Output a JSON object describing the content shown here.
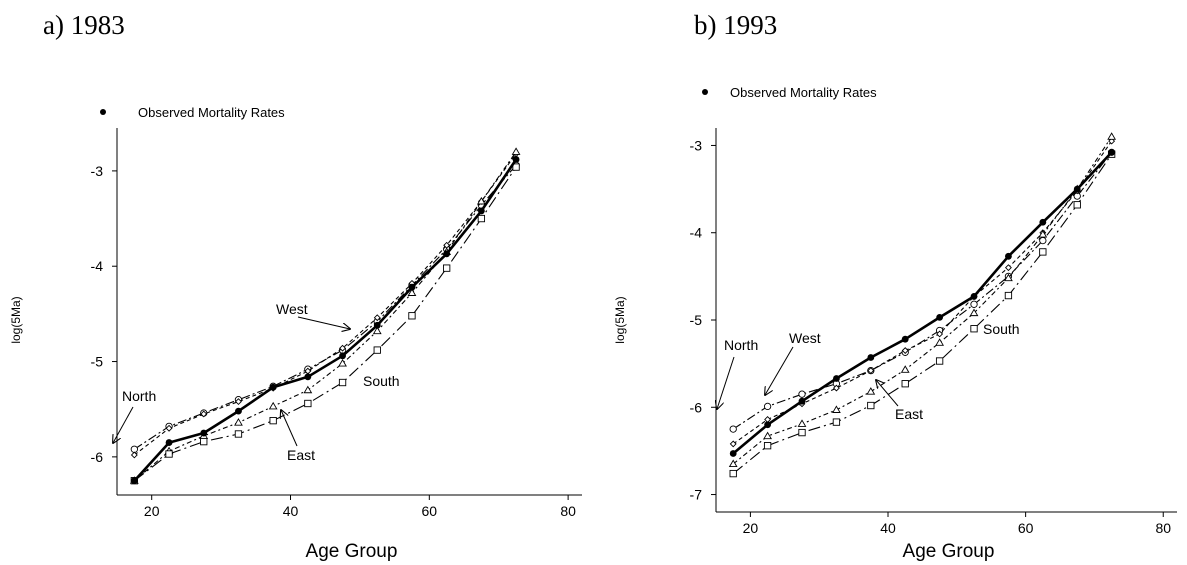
{
  "panels": [
    {
      "title": "a) 1983"
    },
    {
      "title": "b) 1993"
    }
  ],
  "chart_data": [
    {
      "type": "line",
      "title": "a) 1983",
      "xlabel": "Age Group",
      "ylabel": "log(5Ma)",
      "xlim": [
        15,
        82
      ],
      "ylim": [
        -6.4,
        -2.55
      ],
      "xticks": [
        20,
        40,
        60,
        80
      ],
      "yticks": [
        -6,
        -5,
        -4,
        -3
      ],
      "legend": {
        "label": "Observed Mortality Rates",
        "placement": "top-left"
      },
      "x": [
        17.5,
        22.5,
        27.5,
        32.5,
        37.5,
        42.5,
        47.5,
        52.5,
        57.5,
        62.5,
        67.5,
        72.5
      ],
      "series": [
        {
          "name": "Observed Mortality Rates",
          "marker": "dot",
          "values": [
            -6.25,
            -5.85,
            -5.75,
            -5.52,
            -5.27,
            -5.16,
            -4.94,
            -4.62,
            -4.22,
            -3.87,
            -3.42,
            -2.88
          ]
        },
        {
          "name": "North",
          "marker": "circle",
          "values": [
            -5.92,
            -5.68,
            -5.54,
            -5.4,
            -5.26,
            -5.08,
            -4.88,
            -4.58,
            -4.2,
            -3.82,
            -3.36,
            -2.94
          ]
        },
        {
          "name": "West",
          "marker": "diamond",
          "values": [
            -5.98,
            -5.7,
            -5.55,
            -5.42,
            -5.28,
            -5.1,
            -4.86,
            -4.54,
            -4.18,
            -3.78,
            -3.32,
            -2.82
          ]
        },
        {
          "name": "East",
          "marker": "triangle",
          "values": [
            -6.25,
            -5.94,
            -5.78,
            -5.64,
            -5.47,
            -5.3,
            -5.02,
            -4.68,
            -4.28,
            -3.85,
            -3.32,
            -2.8
          ]
        },
        {
          "name": "South",
          "marker": "square",
          "values": [
            -6.25,
            -5.97,
            -5.84,
            -5.76,
            -5.62,
            -5.44,
            -5.22,
            -4.88,
            -4.52,
            -4.02,
            -3.5,
            -2.96
          ]
        }
      ],
      "annotations": [
        "North",
        "West",
        "East",
        "South"
      ]
    },
    {
      "type": "line",
      "title": "b) 1993",
      "xlabel": "Age Group",
      "ylabel": "log(5Ma)",
      "xlim": [
        15,
        82
      ],
      "ylim": [
        -7.2,
        -2.8
      ],
      "xticks": [
        20,
        40,
        60,
        80
      ],
      "yticks": [
        -7,
        -6,
        -5,
        -4,
        -3
      ],
      "legend": {
        "label": "Observed Mortality Rates",
        "placement": "top-left"
      },
      "x": [
        17.5,
        22.5,
        27.5,
        32.5,
        37.5,
        42.5,
        47.5,
        52.5,
        57.5,
        62.5,
        67.5,
        72.5
      ],
      "series": [
        {
          "name": "Observed Mortality Rates",
          "marker": "dot",
          "values": [
            -6.53,
            -6.2,
            -5.93,
            -5.67,
            -5.43,
            -5.22,
            -4.97,
            -4.73,
            -4.27,
            -3.88,
            -3.5,
            -3.08
          ]
        },
        {
          "name": "North",
          "marker": "circle",
          "values": [
            -6.25,
            -5.99,
            -5.85,
            -5.73,
            -5.58,
            -5.37,
            -5.12,
            -4.82,
            -4.5,
            -4.09,
            -3.58,
            -3.08
          ]
        },
        {
          "name": "West",
          "marker": "diamond",
          "values": [
            -6.42,
            -6.14,
            -5.96,
            -5.78,
            -5.58,
            -5.35,
            -5.16,
            -4.73,
            -4.4,
            -4.0,
            -3.52,
            -2.95
          ]
        },
        {
          "name": "East",
          "marker": "triangle",
          "values": [
            -6.65,
            -6.33,
            -6.19,
            -6.03,
            -5.82,
            -5.57,
            -5.26,
            -4.92,
            -4.52,
            -4.02,
            -3.5,
            -2.9
          ]
        },
        {
          "name": "South",
          "marker": "square",
          "values": [
            -6.76,
            -6.44,
            -6.29,
            -6.17,
            -5.98,
            -5.73,
            -5.47,
            -5.1,
            -4.72,
            -4.22,
            -3.68,
            -3.1
          ]
        }
      ],
      "annotations": [
        "North",
        "West",
        "South",
        "East"
      ]
    }
  ]
}
